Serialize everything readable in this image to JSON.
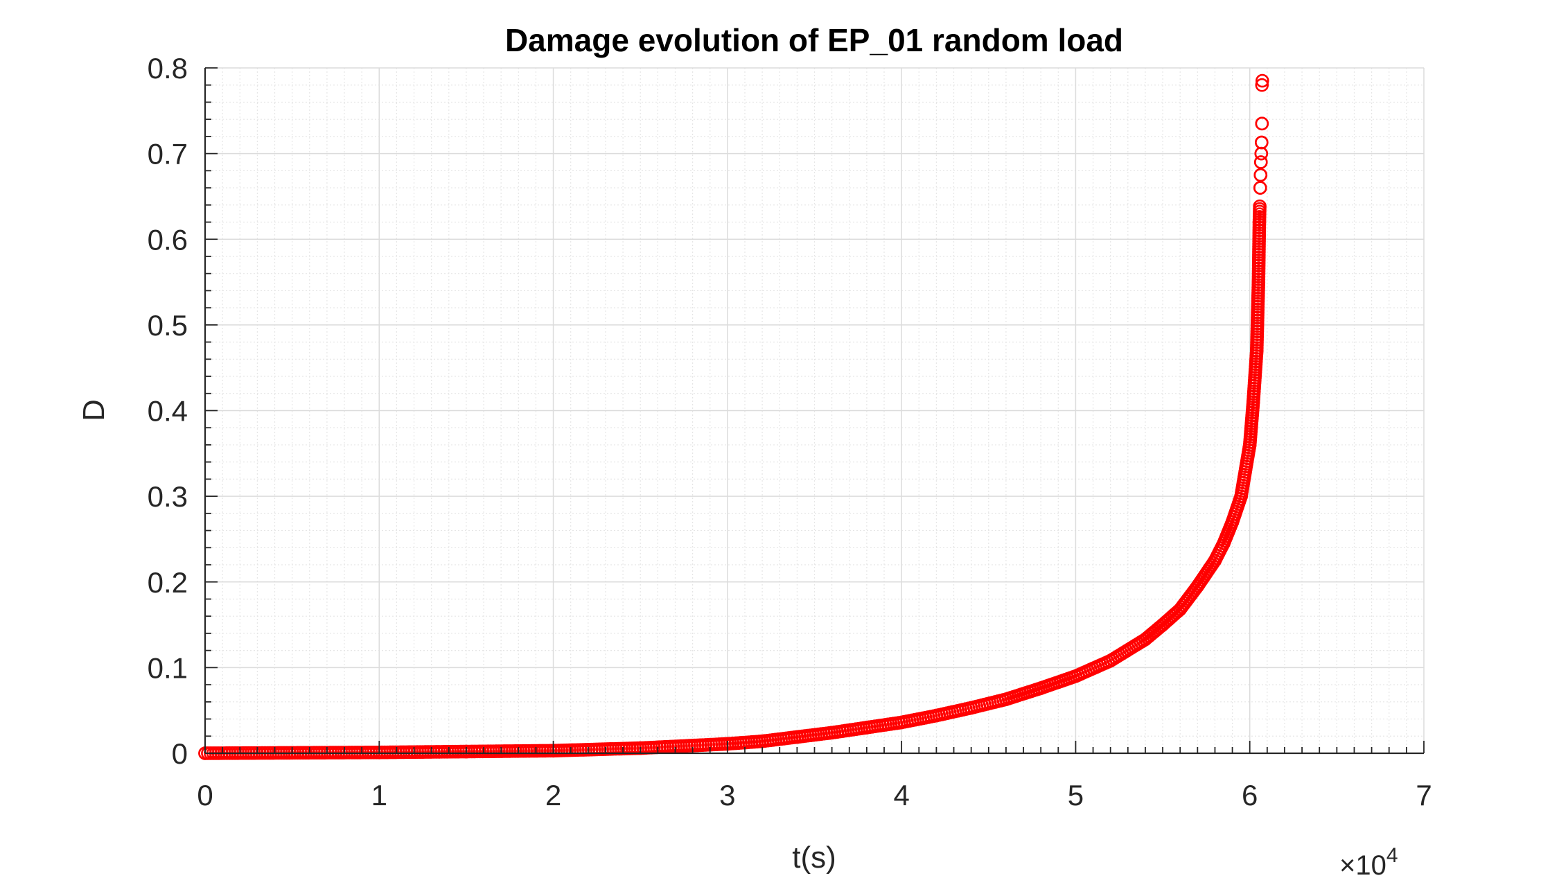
{
  "chart_data": {
    "type": "scatter",
    "title": "Damage evolution of EP_01 random load",
    "xlabel": "t(s)",
    "ylabel": "D",
    "x_exponent_label": "×10",
    "x_exponent_power": "4",
    "x_scale_factor": 10000,
    "xlim": [
      0,
      70000
    ],
    "ylim": [
      0,
      0.8
    ],
    "x_ticks": [
      0,
      10000,
      20000,
      30000,
      40000,
      50000,
      60000,
      70000
    ],
    "x_tick_labels": [
      "0",
      "1",
      "2",
      "3",
      "4",
      "5",
      "6",
      "7"
    ],
    "y_ticks": [
      0,
      0.1,
      0.2,
      0.3,
      0.4,
      0.5,
      0.6,
      0.7,
      0.8
    ],
    "y_tick_labels": [
      "0",
      "0.1",
      "0.2",
      "0.3",
      "0.4",
      "0.5",
      "0.6",
      "0.7",
      "0.8"
    ],
    "grid": true,
    "minor_grid": true,
    "marker": "circle-open",
    "color": "#ff0000",
    "series": [
      {
        "x": [
          0,
          5000,
          10000,
          15000,
          20000,
          25000,
          30000,
          32000,
          34000,
          36000,
          38000,
          40000,
          42000,
          44000,
          46000,
          48000,
          50000,
          52000,
          54000,
          55000,
          56000,
          57000,
          58000,
          58500,
          59000,
          59500,
          60000,
          60200,
          60400,
          60500,
          60550,
          60600,
          60620,
          60640,
          60660,
          60680,
          60700,
          60720
        ],
        "y": [
          0.0,
          0.0005,
          0.001,
          0.002,
          0.003,
          0.006,
          0.011,
          0.014,
          0.019,
          0.024,
          0.03,
          0.036,
          0.044,
          0.053,
          0.063,
          0.076,
          0.09,
          0.108,
          0.133,
          0.15,
          0.168,
          0.195,
          0.225,
          0.245,
          0.27,
          0.3,
          0.36,
          0.41,
          0.47,
          0.55,
          0.62,
          0.66,
          0.675,
          0.69,
          0.7,
          0.713,
          0.735,
          0.785
        ]
      }
    ]
  }
}
